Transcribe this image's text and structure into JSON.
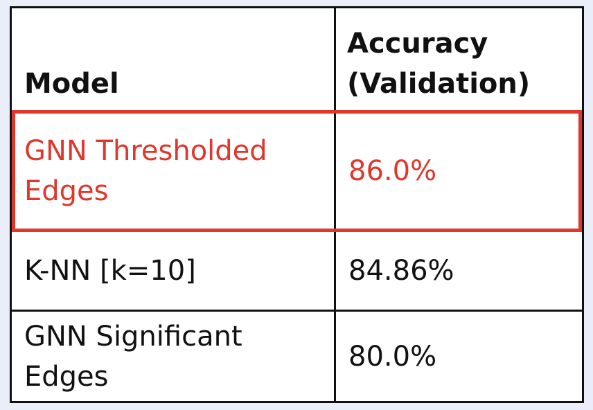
{
  "table": {
    "headers": {
      "model": "Model",
      "accuracy_line1": "Accuracy",
      "accuracy_line2": "(Validation)"
    },
    "rows": [
      {
        "model_line1": "GNN Thresholded",
        "model_line2": "Edges",
        "accuracy": "86.0%",
        "highlighted": true
      },
      {
        "model_line1": "K-NN [k=10]",
        "model_line2": "",
        "accuracy": "84.86%",
        "highlighted": false
      },
      {
        "model_line1": "GNN Significant",
        "model_line2": "Edges",
        "accuracy": "80.0%",
        "highlighted": false
      }
    ]
  },
  "colors": {
    "background": "#e9eef8",
    "border": "#111111",
    "highlight": "#e0372c"
  }
}
